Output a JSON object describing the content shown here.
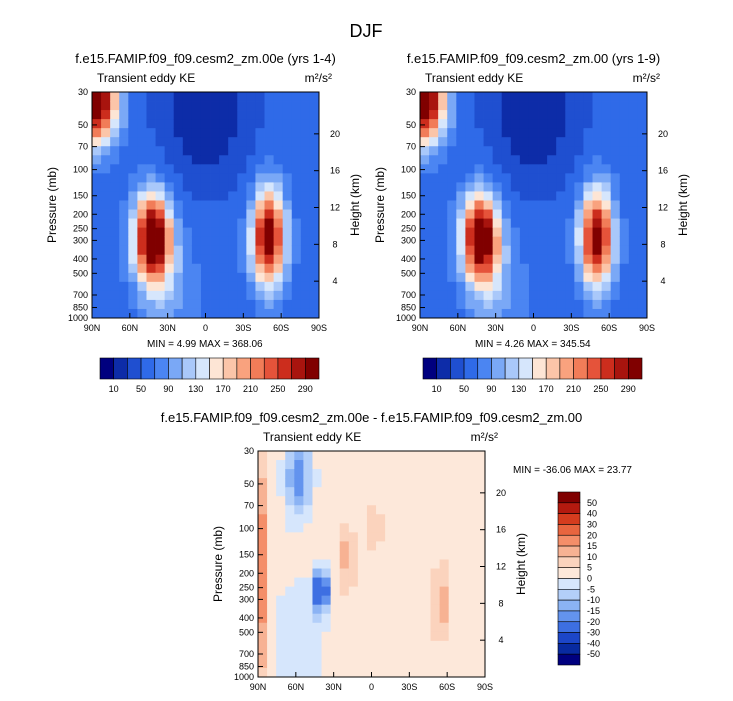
{
  "page": {
    "title": "DJF"
  },
  "chart_data": [
    {
      "type": "heatmap",
      "title": "f.e15.FAMIP.f09_f09.cesm2_zm.00e (yrs 1-4)",
      "subtitle": "Transient eddy KE",
      "units": "m²/s²",
      "ylabel": "Pressure (mb)",
      "y2label": "Height (km)",
      "x_ticks": [
        "90N",
        "60N",
        "30N",
        "0",
        "30S",
        "60S",
        "90S"
      ],
      "y_ticks": [
        "30",
        "50",
        "70",
        "100",
        "150",
        "200",
        "250",
        "300",
        "400",
        "500",
        "700",
        "850",
        "1000"
      ],
      "y2_ticks": [
        "20",
        "16",
        "12",
        "8",
        "4"
      ],
      "stats": "MIN =   4.99  MAX = 368.06",
      "colorbar_labels": [
        "10",
        "50",
        "90",
        "130",
        "170",
        "210",
        "250",
        "290"
      ],
      "colorbar_colors": [
        "#00007f",
        "#0d2ca8",
        "#1f4fd0",
        "#2f6ae8",
        "#4b85f2",
        "#7aa8f6",
        "#a9c8fa",
        "#d6e6fc",
        "#fde5d5",
        "#fbc5a9",
        "#f9a27e",
        "#f17c58",
        "#e5533a",
        "#cc2d1d",
        "#a8140e",
        "#800000"
      ],
      "field": {
        "background_value": 60,
        "max_value": 368.06,
        "blobs": [
          {
            "lat": 42,
            "logp": 2.46,
            "amp": 290,
            "sx": 10,
            "sp": 0.2
          },
          {
            "lat": 88,
            "logp": 1.52,
            "amp": 300,
            "sx": 12,
            "sp": 0.2
          },
          {
            "lat": -50,
            "logp": 2.46,
            "amp": 260,
            "sx": 9,
            "sp": 0.22
          },
          {
            "lat": 30,
            "logp": 2.8,
            "amp": 40,
            "sx": 15,
            "sp": 0.25
          },
          {
            "lat": 0,
            "logp": 1.6,
            "amp": -50,
            "sx": 25,
            "sp": 0.35
          }
        ]
      }
    },
    {
      "type": "heatmap",
      "title": "f.e15.FAMIP.f09_f09.cesm2_zm.00 (yrs 1-9)",
      "subtitle": "Transient eddy KE",
      "units": "m²/s²",
      "ylabel": "Pressure (mb)",
      "y2label": "Height (km)",
      "x_ticks": [
        "90N",
        "60N",
        "30N",
        "0",
        "30S",
        "60S",
        "90S"
      ],
      "y_ticks": [
        "30",
        "50",
        "70",
        "100",
        "150",
        "200",
        "250",
        "300",
        "400",
        "500",
        "700",
        "850",
        "1000"
      ],
      "y2_ticks": [
        "20",
        "16",
        "12",
        "8",
        "4"
      ],
      "stats": "MIN =   4.26  MAX = 345.54",
      "colorbar_labels": [
        "10",
        "50",
        "90",
        "130",
        "170",
        "210",
        "250",
        "290"
      ],
      "colorbar_colors": [
        "#00007f",
        "#0d2ca8",
        "#1f4fd0",
        "#2f6ae8",
        "#4b85f2",
        "#7aa8f6",
        "#a9c8fa",
        "#d6e6fc",
        "#fde5d5",
        "#fbc5a9",
        "#f9a27e",
        "#f17c58",
        "#e5533a",
        "#cc2d1d",
        "#a8140e",
        "#800000"
      ],
      "field": {
        "background_value": 60,
        "max_value": 345.54,
        "blobs": [
          {
            "lat": 42,
            "logp": 2.46,
            "amp": 280,
            "sx": 10,
            "sp": 0.2
          },
          {
            "lat": 88,
            "logp": 1.52,
            "amp": 300,
            "sx": 12,
            "sp": 0.2
          },
          {
            "lat": -50,
            "logp": 2.46,
            "amp": 250,
            "sx": 9,
            "sp": 0.22
          },
          {
            "lat": 30,
            "logp": 2.8,
            "amp": 40,
            "sx": 15,
            "sp": 0.25
          },
          {
            "lat": 0,
            "logp": 1.6,
            "amp": -50,
            "sx": 25,
            "sp": 0.35
          }
        ]
      }
    },
    {
      "type": "heatmap",
      "title": "f.e15.FAMIP.f09_f09.cesm2_zm.00e - f.e15.FAMIP.f09_f09.cesm2_zm.00",
      "subtitle": "Transient eddy KE",
      "units": "m²/s²",
      "ylabel": "Pressure (mb)",
      "y2label": "Height (km)",
      "x_ticks": [
        "90N",
        "60N",
        "30N",
        "0",
        "30S",
        "60S",
        "90S"
      ],
      "y_ticks": [
        "30",
        "50",
        "70",
        "100",
        "150",
        "200",
        "250",
        "300",
        "400",
        "500",
        "700",
        "850",
        "1000"
      ],
      "y2_ticks": [
        "20",
        "16",
        "12",
        "8",
        "4"
      ],
      "stats": "MIN = -36.06  MAX =  23.77",
      "colorbar_labels": [
        "50",
        "40",
        "30",
        "20",
        "15",
        "10",
        "5",
        "0",
        "-5",
        "-10",
        "-15",
        "-20",
        "-30",
        "-40",
        "-50"
      ],
      "colorbar_colors": [
        "#800000",
        "#b41a0f",
        "#d53c1e",
        "#e8653f",
        "#f48e69",
        "#f7b293",
        "#fbd3bd",
        "#fde8da",
        "#d6e6fc",
        "#b3cff9",
        "#8bb3f4",
        "#6393ee",
        "#3d6fe2",
        "#1c46c8",
        "#082aa0",
        "#00007f"
      ],
      "field": {
        "background_value": 2,
        "blobs": [
          {
            "lat": -55,
            "logp": 2.5,
            "amp": 12,
            "sx": 5,
            "sp": 0.18
          },
          {
            "lat": -2,
            "logp": 2.0,
            "amp": 8,
            "sx": 5,
            "sp": 0.12
          },
          {
            "lat": 88,
            "logp": 2.3,
            "amp": 18,
            "sx": 4,
            "sp": 0.55
          },
          {
            "lat": 40,
            "logp": 2.42,
            "amp": -36,
            "sx": 4,
            "sp": 0.1
          },
          {
            "lat": 58,
            "logp": 1.65,
            "amp": -20,
            "sx": 7,
            "sp": 0.18
          },
          {
            "lat": 20,
            "logp": 2.2,
            "amp": 10,
            "sx": 5,
            "sp": 0.15
          },
          {
            "lat": 60,
            "logp": 2.8,
            "amp": -6,
            "sx": 14,
            "sp": 0.3
          }
        ]
      }
    }
  ]
}
